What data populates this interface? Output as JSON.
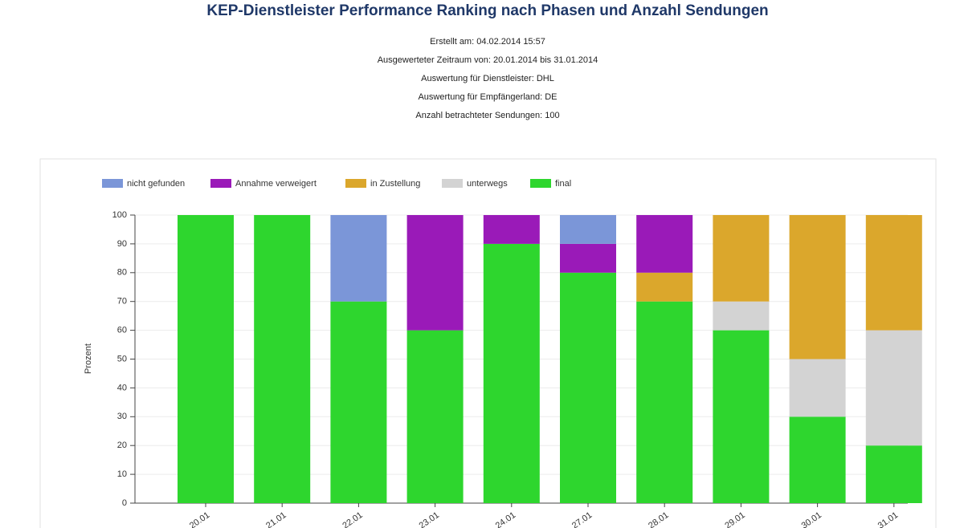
{
  "chart_data": {
    "type": "stacked-bar",
    "title": "KEP-Dienstleister Performance Ranking nach Phasen und Anzahl Sendungen",
    "subtitle": [
      "Erstellt am: 04.02.2014 15:57",
      "Ausgewerteter Zeitraum von: 20.01.2014 bis 31.01.2014",
      "Auswertung für Dienstleister: DHL",
      "Auswertung für Empfängerland: DE",
      "Anzahl betrachteter Sendungen: 100"
    ],
    "y_label": "Prozent",
    "categories": [
      "20.01",
      "21.01",
      "22.01",
      "23.01",
      "24.01",
      "27.01",
      "28.01",
      "29.01",
      "30.01",
      "31.01"
    ],
    "series": [
      {
        "name": "nicht gefunden",
        "color": "#7b96d8",
        "values": [
          0,
          0,
          30,
          0,
          0,
          10,
          0,
          0,
          0,
          0
        ]
      },
      {
        "name": "Annahme verweigert",
        "color": "#9a1ab8",
        "values": [
          0,
          0,
          0,
          40,
          10,
          10,
          20,
          0,
          0,
          0
        ]
      },
      {
        "name": "in Zustellung",
        "color": "#dba72c",
        "values": [
          0,
          0,
          0,
          0,
          0,
          0,
          10,
          30,
          50,
          40
        ]
      },
      {
        "name": "unterwegs",
        "color": "#d3d3d3",
        "values": [
          0,
          0,
          0,
          0,
          0,
          0,
          0,
          10,
          20,
          40
        ]
      },
      {
        "name": "final",
        "color": "#2ed62e",
        "values": [
          100,
          100,
          70,
          60,
          90,
          80,
          70,
          60,
          30,
          20
        ]
      }
    ],
    "ylim": [
      0,
      100
    ],
    "yticks": [
      0,
      10,
      20,
      30,
      40,
      50,
      60,
      70,
      80,
      90,
      100
    ],
    "grid": true
  }
}
